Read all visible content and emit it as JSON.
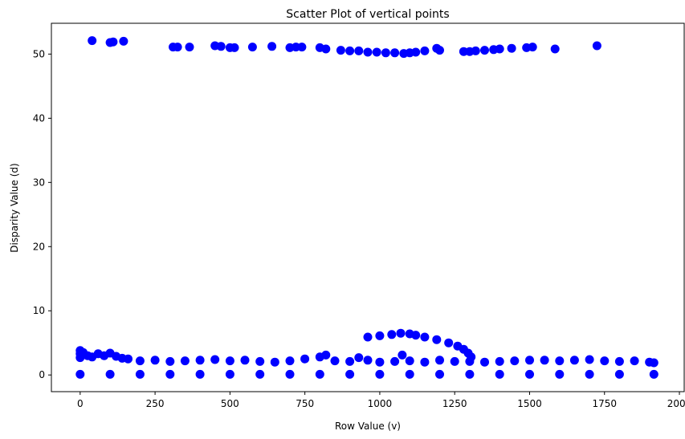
{
  "chart_data": {
    "type": "scatter",
    "title": "Scatter Plot of vertical points",
    "xlabel": "Row Value (v)",
    "ylabel": "Disparity Value (d)",
    "xlim": [
      -96,
      2016
    ],
    "ylim": [
      -2.6,
      54.8
    ],
    "xticks": [
      0,
      250,
      500,
      750,
      1000,
      1250,
      1500,
      1750,
      2000
    ],
    "yticks": [
      0,
      10,
      20,
      30,
      40,
      50
    ],
    "grid": false,
    "legend": "none",
    "point_color": "#0000ff",
    "series": [
      {
        "points": [
          [
            40,
            52.1
          ],
          [
            100,
            51.8
          ],
          [
            110,
            51.9
          ],
          [
            145,
            52.0
          ],
          [
            310,
            51.1
          ],
          [
            325,
            51.1
          ],
          [
            365,
            51.1
          ],
          [
            450,
            51.3
          ],
          [
            470,
            51.2
          ],
          [
            500,
            51.0
          ],
          [
            515,
            51.0
          ],
          [
            575,
            51.1
          ],
          [
            640,
            51.2
          ],
          [
            700,
            51.0
          ],
          [
            720,
            51.1
          ],
          [
            740,
            51.1
          ],
          [
            800,
            51.0
          ],
          [
            820,
            50.8
          ],
          [
            870,
            50.6
          ],
          [
            900,
            50.5
          ],
          [
            930,
            50.5
          ],
          [
            960,
            50.3
          ],
          [
            990,
            50.3
          ],
          [
            1020,
            50.2
          ],
          [
            1050,
            50.2
          ],
          [
            1080,
            50.1
          ],
          [
            1100,
            50.2
          ],
          [
            1120,
            50.3
          ],
          [
            1150,
            50.5
          ],
          [
            1190,
            50.9
          ],
          [
            1200,
            50.6
          ],
          [
            1280,
            50.4
          ],
          [
            1300,
            50.4
          ],
          [
            1320,
            50.5
          ],
          [
            1350,
            50.6
          ],
          [
            1380,
            50.7
          ],
          [
            1400,
            50.8
          ],
          [
            1440,
            50.9
          ],
          [
            1490,
            51.0
          ],
          [
            1510,
            51.1
          ],
          [
            1585,
            50.8
          ],
          [
            1725,
            51.3
          ],
          [
            960,
            5.9
          ],
          [
            1000,
            6.1
          ],
          [
            1040,
            6.3
          ],
          [
            1070,
            6.5
          ],
          [
            1100,
            6.4
          ],
          [
            1120,
            6.2
          ],
          [
            1150,
            5.9
          ],
          [
            1190,
            5.5
          ],
          [
            1230,
            5.0
          ],
          [
            1260,
            4.5
          ],
          [
            1280,
            4.0
          ],
          [
            1295,
            3.4
          ],
          [
            1305,
            2.8
          ],
          [
            0,
            3.8
          ],
          [
            0,
            3.3
          ],
          [
            0,
            2.7
          ],
          [
            10,
            3.5
          ],
          [
            25,
            3.0
          ],
          [
            40,
            2.8
          ],
          [
            60,
            3.3
          ],
          [
            80,
            3.0
          ],
          [
            100,
            3.4
          ],
          [
            120,
            2.9
          ],
          [
            140,
            2.6
          ],
          [
            160,
            2.5
          ],
          [
            200,
            2.2
          ],
          [
            250,
            2.3
          ],
          [
            300,
            2.1
          ],
          [
            350,
            2.2
          ],
          [
            400,
            2.3
          ],
          [
            450,
            2.4
          ],
          [
            500,
            2.2
          ],
          [
            550,
            2.3
          ],
          [
            600,
            2.1
          ],
          [
            650,
            2.0
          ],
          [
            700,
            2.2
          ],
          [
            750,
            2.5
          ],
          [
            800,
            2.8
          ],
          [
            820,
            3.1
          ],
          [
            850,
            2.2
          ],
          [
            900,
            2.1
          ],
          [
            930,
            2.7
          ],
          [
            960,
            2.3
          ],
          [
            1000,
            2.0
          ],
          [
            1050,
            2.1
          ],
          [
            1075,
            3.1
          ],
          [
            1100,
            2.2
          ],
          [
            1150,
            2.0
          ],
          [
            1200,
            2.3
          ],
          [
            1250,
            2.1
          ],
          [
            1300,
            2.1
          ],
          [
            1350,
            2.0
          ],
          [
            1400,
            2.1
          ],
          [
            1450,
            2.2
          ],
          [
            1500,
            2.3
          ],
          [
            1550,
            2.3
          ],
          [
            1600,
            2.2
          ],
          [
            1650,
            2.3
          ],
          [
            1700,
            2.4
          ],
          [
            1750,
            2.2
          ],
          [
            1800,
            2.1
          ],
          [
            1850,
            2.2
          ],
          [
            1900,
            2.0
          ],
          [
            1915,
            1.9
          ],
          [
            0,
            0.1
          ],
          [
            100,
            0.1
          ],
          [
            200,
            0.1
          ],
          [
            300,
            0.1
          ],
          [
            400,
            0.1
          ],
          [
            500,
            0.1
          ],
          [
            600,
            0.1
          ],
          [
            700,
            0.1
          ],
          [
            800,
            0.1
          ],
          [
            900,
            0.1
          ],
          [
            1000,
            0.1
          ],
          [
            1100,
            0.1
          ],
          [
            1200,
            0.1
          ],
          [
            1300,
            0.1
          ],
          [
            1400,
            0.1
          ],
          [
            1500,
            0.1
          ],
          [
            1600,
            0.1
          ],
          [
            1700,
            0.1
          ],
          [
            1800,
            0.1
          ],
          [
            1915,
            0.1
          ]
        ]
      }
    ]
  }
}
